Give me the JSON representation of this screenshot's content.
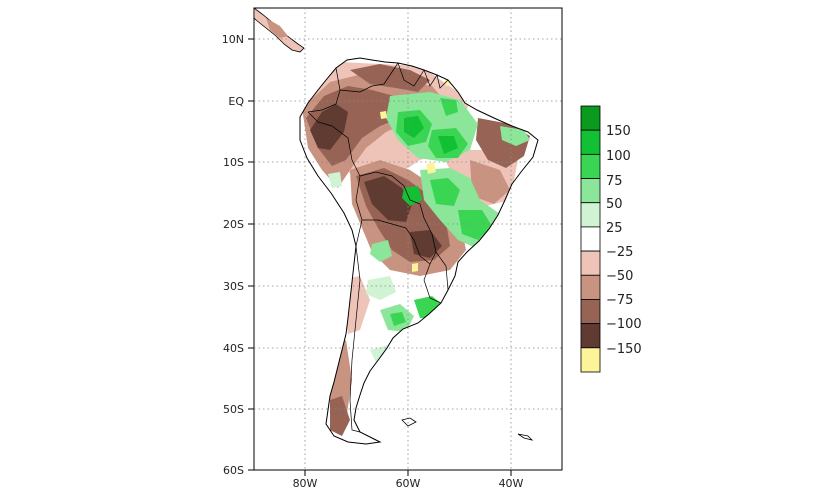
{
  "map": {
    "lat_ticks": [
      "10N",
      "EQ",
      "10S",
      "20S",
      "30S",
      "40S",
      "50S",
      "60S"
    ],
    "lon_ticks": [
      "80W",
      "60W",
      "40W"
    ],
    "grid": true
  },
  "legend": {
    "labels": [
      "150",
      "100",
      "75",
      "50",
      "25",
      "−25",
      "−50",
      "−75",
      "−100",
      "−150"
    ],
    "colors": [
      "#0a9a20",
      "#11c033",
      "#3ad653",
      "#8be699",
      "#d0f3d4",
      "#ffffff",
      "#efc4b8",
      "#c99381",
      "#966355",
      "#5f3b32",
      "#fdf49a"
    ]
  }
}
